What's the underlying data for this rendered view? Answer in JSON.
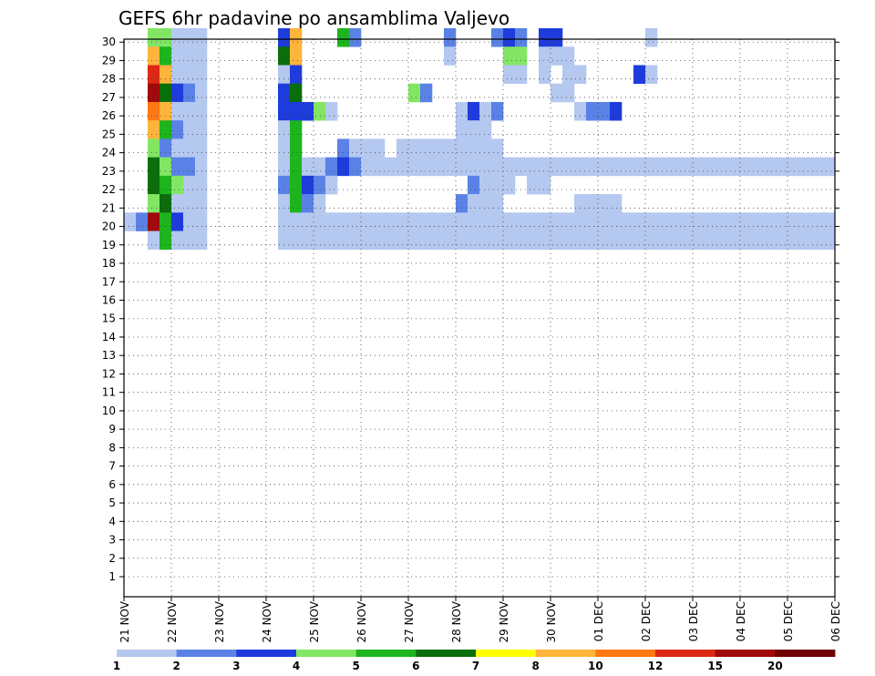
{
  "chart_data": {
    "type": "heatmap",
    "title": "GEFS 6hr padavine po ansamblima Valjevo",
    "x_tick_labels": [
      "21 NOV",
      "22 NOV",
      "23 NOV",
      "24 NOV",
      "25 NOV",
      "26 NOV",
      "27 NOV",
      "28 NOV",
      "29 NOV",
      "30 NOV",
      "01 DEC",
      "02 DEC",
      "03 DEC",
      "04 DEC",
      "05 DEC",
      "06 DEC"
    ],
    "y_tick_labels": [
      "1",
      "2",
      "3",
      "4",
      "5",
      "6",
      "7",
      "8",
      "9",
      "10",
      "11",
      "12",
      "13",
      "14",
      "15",
      "16",
      "17",
      "18",
      "19",
      "20",
      "21",
      "22",
      "23",
      "24",
      "25",
      "26",
      "27",
      "28",
      "29",
      "30"
    ],
    "ylim": [
      0,
      30
    ],
    "x_step_hours": 6,
    "steps_per_day": 4,
    "grid": true,
    "colorbar": {
      "labels": [
        "1",
        "2",
        "3",
        "4",
        "5",
        "6",
        "7",
        "8",
        "10",
        "12",
        "15",
        "20"
      ],
      "colors": [
        "#b4c8f0",
        "#5a82e6",
        "#1e3cdc",
        "#82e664",
        "#1eb41e",
        "#0a6e0a",
        "#ffff00",
        "#ffb43c",
        "#ff7814",
        "#dc2814",
        "#a00a0a",
        "#6e0000"
      ]
    },
    "cells": [
      [
        0,
        2,
        3
      ],
      [
        0,
        3,
        3
      ],
      [
        0,
        4,
        0
      ],
      [
        0,
        5,
        0
      ],
      [
        0,
        6,
        0
      ],
      [
        0,
        13,
        2
      ],
      [
        0,
        14,
        7
      ],
      [
        0,
        18,
        4
      ],
      [
        0,
        19,
        1
      ],
      [
        0,
        27,
        1
      ],
      [
        0,
        31,
        1
      ],
      [
        0,
        32,
        2
      ],
      [
        0,
        33,
        1
      ],
      [
        0,
        35,
        2
      ],
      [
        0,
        36,
        2
      ],
      [
        0,
        44,
        0
      ],
      [
        1,
        2,
        7
      ],
      [
        1,
        3,
        4
      ],
      [
        1,
        4,
        0
      ],
      [
        1,
        5,
        0
      ],
      [
        1,
        6,
        0
      ],
      [
        1,
        13,
        5
      ],
      [
        1,
        14,
        7
      ],
      [
        1,
        27,
        0
      ],
      [
        1,
        32,
        3
      ],
      [
        1,
        33,
        3
      ],
      [
        1,
        35,
        0
      ],
      [
        1,
        36,
        0
      ],
      [
        1,
        37,
        0
      ],
      [
        2,
        2,
        9
      ],
      [
        2,
        3,
        7
      ],
      [
        2,
        4,
        0
      ],
      [
        2,
        5,
        0
      ],
      [
        2,
        6,
        0
      ],
      [
        2,
        13,
        0
      ],
      [
        2,
        14,
        2
      ],
      [
        2,
        32,
        0
      ],
      [
        2,
        33,
        0
      ],
      [
        2,
        35,
        0
      ],
      [
        2,
        37,
        0
      ],
      [
        2,
        38,
        0
      ],
      [
        2,
        43,
        2
      ],
      [
        2,
        44,
        0
      ],
      [
        3,
        2,
        10
      ],
      [
        3,
        3,
        5
      ],
      [
        3,
        4,
        2
      ],
      [
        3,
        5,
        1
      ],
      [
        3,
        6,
        0
      ],
      [
        3,
        13,
        2
      ],
      [
        3,
        14,
        5
      ],
      [
        3,
        24,
        3
      ],
      [
        3,
        25,
        1
      ],
      [
        3,
        36,
        0
      ],
      [
        3,
        37,
        0
      ],
      [
        4,
        2,
        8
      ],
      [
        4,
        3,
        7
      ],
      [
        4,
        4,
        0
      ],
      [
        4,
        5,
        0
      ],
      [
        4,
        6,
        0
      ],
      [
        4,
        13,
        2
      ],
      [
        4,
        14,
        2
      ],
      [
        4,
        15,
        2
      ],
      [
        4,
        16,
        3
      ],
      [
        4,
        17,
        0
      ],
      [
        4,
        28,
        0
      ],
      [
        4,
        29,
        2
      ],
      [
        4,
        30,
        0
      ],
      [
        4,
        31,
        1
      ],
      [
        4,
        38,
        0
      ],
      [
        4,
        39,
        1
      ],
      [
        4,
        40,
        1
      ],
      [
        4,
        41,
        2
      ],
      [
        5,
        2,
        7
      ],
      [
        5,
        3,
        4
      ],
      [
        5,
        4,
        1
      ],
      [
        5,
        5,
        0
      ],
      [
        5,
        6,
        0
      ],
      [
        5,
        13,
        0
      ],
      [
        5,
        14,
        4
      ],
      [
        5,
        28,
        0
      ],
      [
        5,
        29,
        0
      ],
      [
        5,
        30,
        0
      ],
      [
        6,
        2,
        3
      ],
      [
        6,
        3,
        1
      ],
      [
        6,
        4,
        0
      ],
      [
        6,
        5,
        0
      ],
      [
        6,
        6,
        0
      ],
      [
        6,
        13,
        0
      ],
      [
        6,
        14,
        4
      ],
      [
        6,
        18,
        1
      ],
      [
        6,
        19,
        0
      ],
      [
        6,
        20,
        0
      ],
      [
        6,
        21,
        0
      ],
      [
        6,
        23,
        0
      ],
      [
        6,
        24,
        0
      ],
      [
        6,
        25,
        0
      ],
      [
        6,
        26,
        0
      ],
      [
        6,
        27,
        0
      ],
      [
        6,
        28,
        0
      ],
      [
        6,
        29,
        0
      ],
      [
        6,
        30,
        0
      ],
      [
        6,
        31,
        0
      ],
      [
        7,
        2,
        5
      ],
      [
        7,
        3,
        3
      ],
      [
        7,
        4,
        1
      ],
      [
        7,
        5,
        1
      ],
      [
        7,
        6,
        0
      ],
      [
        7,
        13,
        0
      ],
      [
        7,
        14,
        4
      ],
      [
        7,
        15,
        0
      ],
      [
        7,
        16,
        0
      ],
      [
        7,
        17,
        1
      ],
      [
        7,
        18,
        2
      ],
      [
        7,
        19,
        1
      ],
      [
        7,
        20,
        0
      ],
      [
        7,
        21,
        0
      ],
      [
        7,
        22,
        0
      ],
      [
        7,
        23,
        0
      ],
      [
        7,
        24,
        0
      ],
      [
        7,
        25,
        0
      ],
      [
        7,
        26,
        0
      ],
      [
        7,
        27,
        0
      ],
      [
        7,
        28,
        0
      ],
      [
        7,
        29,
        0
      ],
      [
        7,
        30,
        0
      ],
      [
        7,
        31,
        0
      ],
      [
        7,
        32,
        0
      ],
      [
        7,
        33,
        0
      ],
      [
        7,
        34,
        0
      ],
      [
        7,
        35,
        0
      ],
      [
        7,
        36,
        0
      ],
      [
        7,
        37,
        0
      ],
      [
        7,
        38,
        0
      ],
      [
        7,
        39,
        0
      ],
      [
        7,
        40,
        0
      ],
      [
        7,
        41,
        0
      ],
      [
        7,
        42,
        0
      ],
      [
        7,
        43,
        0
      ],
      [
        7,
        44,
        0
      ],
      [
        7,
        45,
        0
      ],
      [
        7,
        46,
        0
      ],
      [
        7,
        47,
        0
      ],
      [
        7,
        48,
        0
      ],
      [
        7,
        49,
        0
      ],
      [
        7,
        50,
        0
      ],
      [
        7,
        51,
        0
      ],
      [
        7,
        52,
        0
      ],
      [
        7,
        53,
        0
      ],
      [
        7,
        54,
        0
      ],
      [
        7,
        55,
        0
      ],
      [
        7,
        56,
        0
      ],
      [
        7,
        57,
        0
      ],
      [
        7,
        58,
        0
      ],
      [
        7,
        59,
        0
      ],
      [
        8,
        2,
        5
      ],
      [
        8,
        3,
        4
      ],
      [
        8,
        4,
        3
      ],
      [
        8,
        5,
        0
      ],
      [
        8,
        6,
        0
      ],
      [
        8,
        13,
        1
      ],
      [
        8,
        14,
        4
      ],
      [
        8,
        15,
        2
      ],
      [
        8,
        16,
        1
      ],
      [
        8,
        17,
        0
      ],
      [
        8,
        29,
        1
      ],
      [
        8,
        30,
        0
      ],
      [
        8,
        31,
        0
      ],
      [
        8,
        32,
        0
      ],
      [
        8,
        34,
        0
      ],
      [
        8,
        35,
        0
      ],
      [
        9,
        2,
        3
      ],
      [
        9,
        3,
        5
      ],
      [
        9,
        4,
        0
      ],
      [
        9,
        5,
        0
      ],
      [
        9,
        6,
        0
      ],
      [
        9,
        13,
        0
      ],
      [
        9,
        14,
        4
      ],
      [
        9,
        15,
        1
      ],
      [
        9,
        16,
        0
      ],
      [
        9,
        28,
        1
      ],
      [
        9,
        29,
        0
      ],
      [
        9,
        30,
        0
      ],
      [
        9,
        31,
        0
      ],
      [
        9,
        38,
        0
      ],
      [
        9,
        39,
        0
      ],
      [
        9,
        40,
        0
      ],
      [
        9,
        41,
        0
      ],
      [
        10,
        0,
        0
      ],
      [
        10,
        1,
        1
      ],
      [
        10,
        2,
        10
      ],
      [
        10,
        3,
        4
      ],
      [
        10,
        4,
        2
      ],
      [
        10,
        5,
        0
      ],
      [
        10,
        6,
        0
      ],
      [
        10,
        13,
        0
      ],
      [
        10,
        14,
        0
      ],
      [
        10,
        15,
        0
      ],
      [
        10,
        16,
        0
      ],
      [
        10,
        17,
        0
      ],
      [
        10,
        18,
        0
      ],
      [
        10,
        19,
        0
      ],
      [
        10,
        20,
        0
      ],
      [
        10,
        21,
        0
      ],
      [
        10,
        22,
        0
      ],
      [
        10,
        23,
        0
      ],
      [
        10,
        24,
        0
      ],
      [
        10,
        25,
        0
      ],
      [
        10,
        26,
        0
      ],
      [
        10,
        27,
        0
      ],
      [
        10,
        28,
        0
      ],
      [
        10,
        29,
        0
      ],
      [
        10,
        30,
        0
      ],
      [
        10,
        31,
        0
      ],
      [
        10,
        32,
        0
      ],
      [
        10,
        33,
        0
      ],
      [
        10,
        34,
        0
      ],
      [
        10,
        35,
        0
      ],
      [
        10,
        36,
        0
      ],
      [
        10,
        37,
        0
      ],
      [
        10,
        38,
        0
      ],
      [
        10,
        39,
        0
      ],
      [
        10,
        40,
        0
      ],
      [
        10,
        41,
        0
      ],
      [
        10,
        42,
        0
      ],
      [
        10,
        43,
        0
      ],
      [
        10,
        44,
        0
      ],
      [
        10,
        45,
        0
      ],
      [
        10,
        46,
        0
      ],
      [
        10,
        47,
        0
      ],
      [
        10,
        48,
        0
      ],
      [
        10,
        49,
        0
      ],
      [
        10,
        50,
        0
      ],
      [
        10,
        51,
        0
      ],
      [
        10,
        52,
        0
      ],
      [
        10,
        53,
        0
      ],
      [
        10,
        54,
        0
      ],
      [
        10,
        55,
        0
      ],
      [
        10,
        56,
        0
      ],
      [
        10,
        57,
        0
      ],
      [
        10,
        58,
        0
      ],
      [
        10,
        59,
        0
      ],
      [
        11,
        2,
        0
      ],
      [
        11,
        3,
        4
      ],
      [
        11,
        4,
        0
      ],
      [
        11,
        5,
        0
      ],
      [
        11,
        6,
        0
      ],
      [
        11,
        13,
        0
      ],
      [
        11,
        14,
        0
      ],
      [
        11,
        15,
        0
      ],
      [
        11,
        16,
        0
      ],
      [
        11,
        17,
        0
      ],
      [
        11,
        18,
        0
      ],
      [
        11,
        19,
        0
      ],
      [
        11,
        20,
        0
      ],
      [
        11,
        21,
        0
      ],
      [
        11,
        22,
        0
      ],
      [
        11,
        23,
        0
      ],
      [
        11,
        24,
        0
      ],
      [
        11,
        25,
        0
      ],
      [
        11,
        26,
        0
      ],
      [
        11,
        27,
        0
      ],
      [
        11,
        28,
        0
      ],
      [
        11,
        29,
        0
      ],
      [
        11,
        30,
        0
      ],
      [
        11,
        31,
        0
      ],
      [
        11,
        32,
        0
      ],
      [
        11,
        33,
        0
      ],
      [
        11,
        34,
        0
      ],
      [
        11,
        35,
        0
      ],
      [
        11,
        36,
        0
      ],
      [
        11,
        37,
        0
      ],
      [
        11,
        38,
        0
      ],
      [
        11,
        39,
        0
      ],
      [
        11,
        40,
        0
      ],
      [
        11,
        41,
        0
      ],
      [
        11,
        42,
        0
      ],
      [
        11,
        43,
        0
      ],
      [
        11,
        44,
        0
      ],
      [
        11,
        45,
        0
      ],
      [
        11,
        46,
        0
      ],
      [
        11,
        47,
        0
      ],
      [
        11,
        48,
        0
      ],
      [
        11,
        49,
        0
      ],
      [
        11,
        50,
        0
      ],
      [
        11,
        51,
        0
      ],
      [
        11,
        52,
        0
      ],
      [
        11,
        53,
        0
      ],
      [
        11,
        54,
        0
      ],
      [
        11,
        55,
        0
      ],
      [
        11,
        56,
        0
      ],
      [
        11,
        57,
        0
      ],
      [
        11,
        58,
        0
      ],
      [
        11,
        59,
        0
      ]
    ]
  }
}
